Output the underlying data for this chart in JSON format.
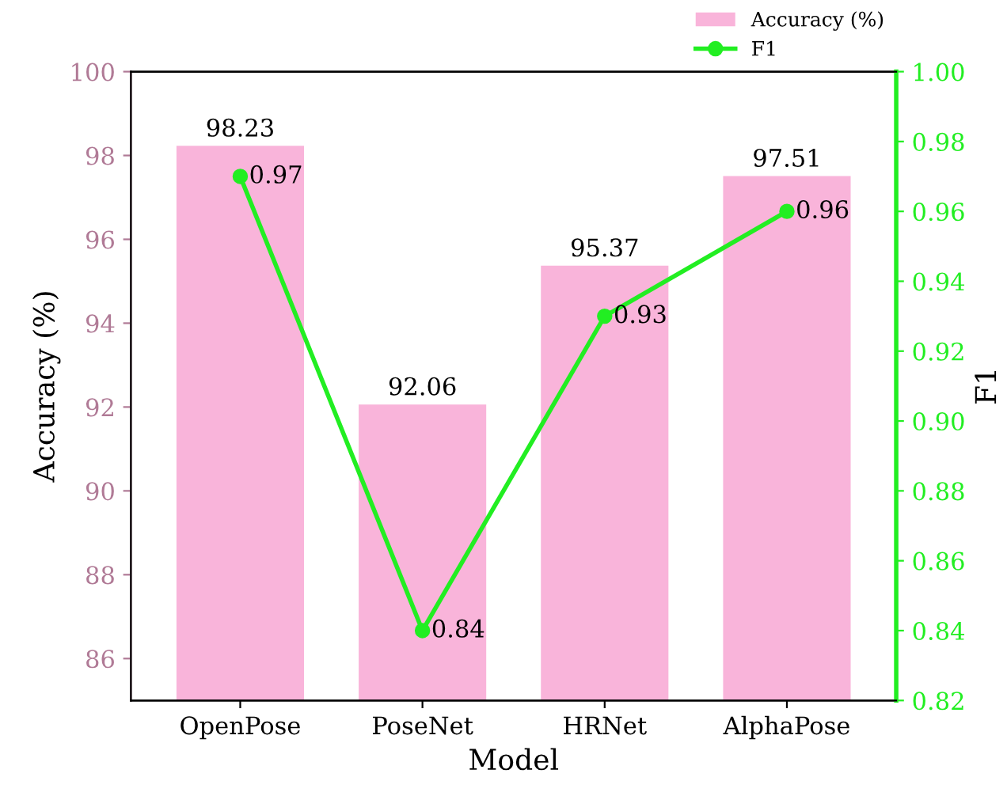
{
  "chart_data": {
    "type": "bar",
    "xlabel": "Model",
    "ylabel": "Accuracy (%)",
    "y2label": "F1",
    "categories": [
      "OpenPose",
      "PoseNet",
      "HRNet",
      "AlphaPose"
    ],
    "series": [
      {
        "name": "Accuracy (%)",
        "color": "#f9b4da",
        "values": [
          98.23,
          92.06,
          95.37,
          97.51
        ]
      },
      {
        "name": "F1",
        "type": "line",
        "axis": "y2",
        "color": "#22ee22",
        "values": [
          0.97,
          0.84,
          0.93,
          0.96
        ]
      }
    ],
    "ylim": [
      85,
      100
    ],
    "yticks": [
      86,
      88,
      90,
      92,
      94,
      96,
      98,
      100
    ],
    "y2lim": [
      0.82,
      1.0
    ],
    "y2ticks": [
      0.82,
      0.84,
      0.86,
      0.88,
      {
        "value": 0.9,
        "label": "0.90"
      },
      0.92,
      0.94,
      0.96,
      0.98,
      {
        "value": 1.0,
        "label": "1.00"
      }
    ],
    "data_labels": true,
    "legend": "top right",
    "marker": "circle",
    "line_style": "solid",
    "grid": false
  }
}
